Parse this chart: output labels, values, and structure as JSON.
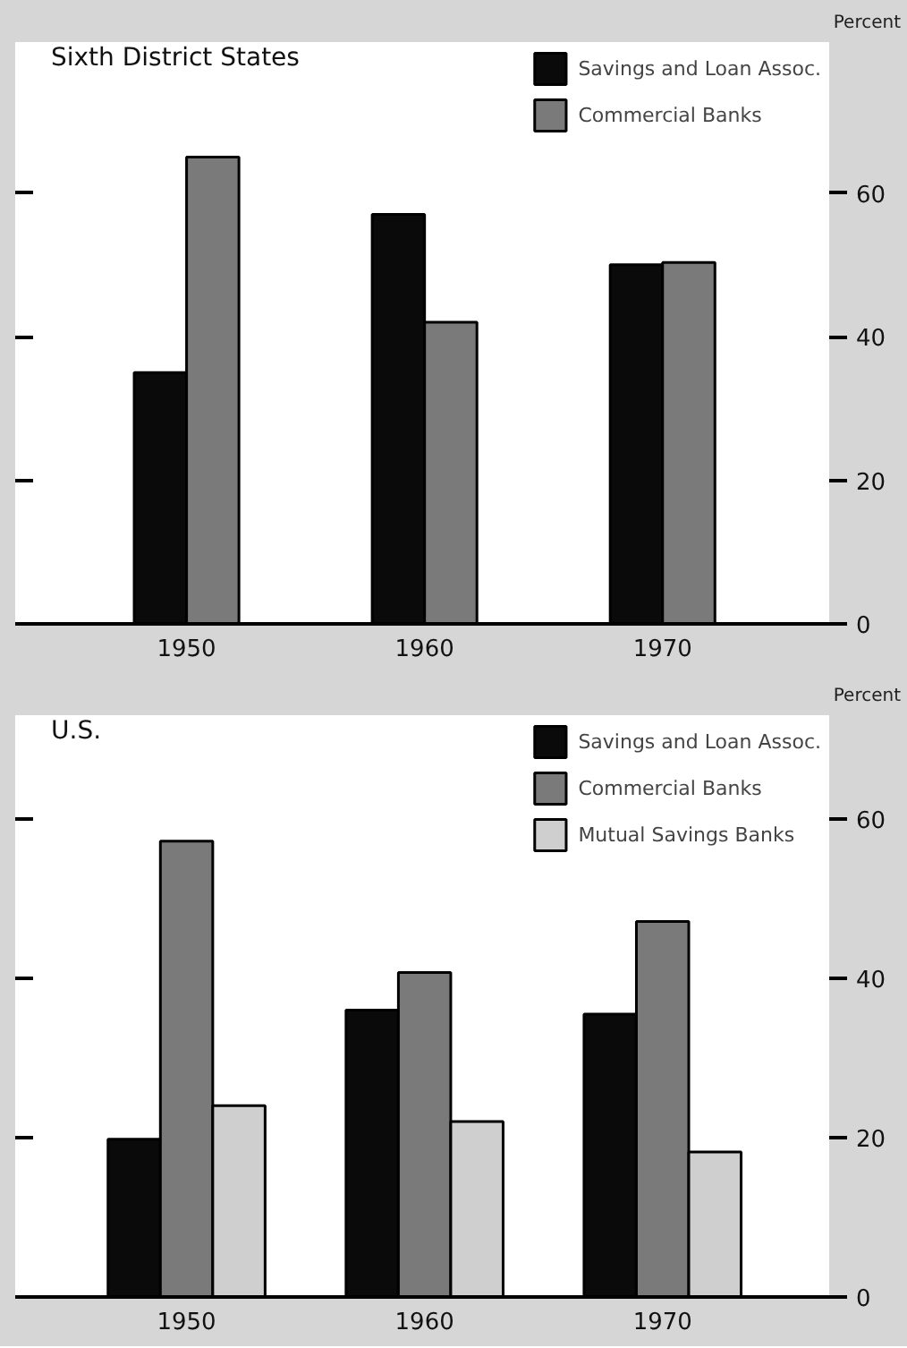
{
  "chart_data": [
    {
      "type": "bar",
      "title": "Sixth District States",
      "ylabel": "Percent",
      "categories": [
        "1950",
        "1960",
        "1970"
      ],
      "series": [
        {
          "name": "Savings and Loan Assoc.",
          "color": "#0a0a0a",
          "values": [
            35,
            57,
            50
          ]
        },
        {
          "name": "Commercial Banks",
          "color": "#7a7a7a",
          "values": [
            65,
            42,
            50.3
          ]
        }
      ],
      "ylim": [
        0,
        81
      ],
      "yticks": [
        0,
        20,
        40,
        60
      ],
      "grid": false,
      "legend": "top right"
    },
    {
      "type": "bar",
      "title": "U.S.",
      "ylabel": "Percent",
      "categories": [
        "1950",
        "1960",
        "1970"
      ],
      "series": [
        {
          "name": "Savings and Loan Assoc.",
          "color": "#0a0a0a",
          "values": [
            19.8,
            36,
            35.5
          ]
        },
        {
          "name": "Commercial Banks",
          "color": "#7a7a7a",
          "values": [
            57.2,
            40.7,
            47.1
          ]
        },
        {
          "name": "Mutual Savings Banks",
          "color": "#cfcfcf",
          "values": [
            24,
            22,
            18.2
          ]
        }
      ],
      "ylim": [
        0,
        73
      ],
      "yticks": [
        0,
        20,
        40,
        60
      ],
      "grid": false,
      "legend": "top right"
    }
  ]
}
